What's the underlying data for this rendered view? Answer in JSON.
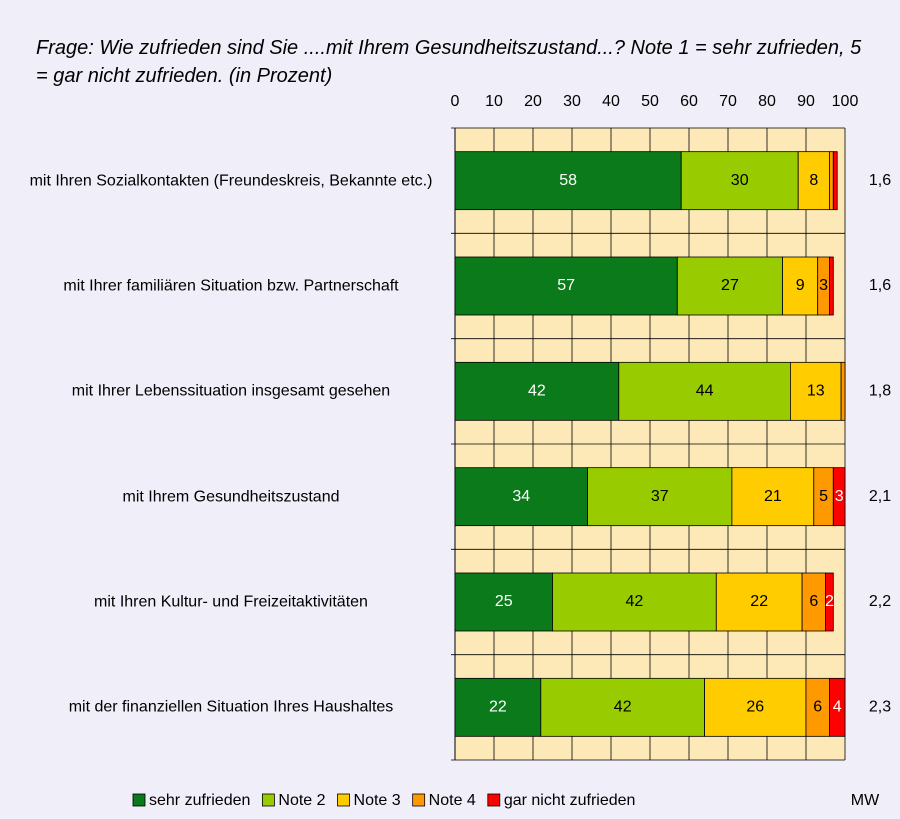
{
  "chart_data": {
    "type": "stacked_barh",
    "title": "Frage: Wie zufrieden sind Sie ....mit Ihrem Gesundheitszustand...? Note 1 = sehr zufrieden, 5 = gar nicht zufrieden. (in Prozent)",
    "categories": [
      "mit Ihren Sozialkontakten (Freundeskreis, Bekannte etc.)",
      "mit Ihrer familiären Situation bzw. Partnerschaft",
      "mit Ihrer Lebenssituation insgesamt gesehen",
      "mit Ihrem Gesundheitszustand",
      "mit Ihren Kultur- und Freizeitaktivitäten",
      "mit der finanziellen Situation Ihres Haushaltes"
    ],
    "series": [
      {
        "name": "sehr zufrieden",
        "color": "#0b7a1a",
        "values": [
          58,
          57,
          42,
          34,
          25,
          22
        ],
        "value_labels": [
          "58",
          "57",
          "42",
          "34",
          "25",
          "22"
        ]
      },
      {
        "name": "Note 2",
        "color": "#99cc00",
        "values": [
          30,
          27,
          44,
          37,
          42,
          42
        ],
        "value_labels": [
          "30",
          "27",
          "44",
          "37",
          "42",
          "42"
        ]
      },
      {
        "name": "Note 3",
        "color": "#ffcc00",
        "values": [
          8,
          9,
          13,
          21,
          22,
          26
        ],
        "value_labels": [
          "8",
          "9",
          "13",
          "21",
          "22",
          "26"
        ]
      },
      {
        "name": "Note 4",
        "color": "#ff9900",
        "values": [
          1,
          3,
          1,
          5,
          6,
          6
        ],
        "value_labels": [
          null,
          "3",
          null,
          "5",
          "6",
          "6"
        ]
      },
      {
        "name": "gar nicht zufrieden",
        "color": "#ff0000",
        "values": [
          1,
          1,
          0,
          3,
          2,
          4
        ],
        "value_labels": [
          null,
          null,
          null,
          "3",
          "2",
          "4"
        ]
      }
    ],
    "mw_label": "MW",
    "mw": [
      "1,6",
      "1,6",
      "1,8",
      "2,1",
      "2,2",
      "2,3"
    ],
    "xlim": [
      0,
      100
    ],
    "xticks": [
      0,
      10,
      20,
      30,
      40,
      50,
      60,
      70,
      80,
      90,
      100
    ],
    "grid": true,
    "plot_background": "#fde9b8",
    "legend": "bottom"
  }
}
